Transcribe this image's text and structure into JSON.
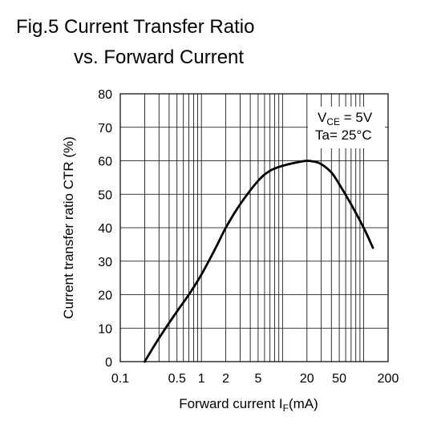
{
  "title": {
    "line1": "Fig.5 Current Transfer Ratio",
    "line2": "vs. Forward Current"
  },
  "chart_data": {
    "type": "line",
    "title": "Fig.5 Current Transfer Ratio vs. Forward Current",
    "xlabel_main": "Forward current I",
    "xlabel_sub": "F",
    "xlabel_unit": "(mA)",
    "ylabel": "Current transfer ratio CTR (%)",
    "x_scale": "log",
    "xlim": [
      0.1,
      200
    ],
    "ylim": [
      0,
      80
    ],
    "x_ticks": [
      0.1,
      0.5,
      1,
      2,
      5,
      20,
      50,
      200
    ],
    "x_tick_labels": [
      "0.1",
      "0.5",
      "1",
      "2",
      "5",
      "20",
      "50",
      "200"
    ],
    "y_ticks": [
      0,
      10,
      20,
      30,
      40,
      50,
      60,
      70,
      80
    ],
    "y_tick_labels": [
      "0",
      "10",
      "20",
      "30",
      "40",
      "50",
      "60",
      "70",
      "80"
    ],
    "grid": true,
    "conditions": {
      "vce_main": "V",
      "vce_sub": "CE",
      "vce_rest": " = 5V",
      "ta": "Ta= 25°C"
    },
    "series": [
      {
        "x": [
          0.2,
          0.3,
          0.5,
          0.7,
          1.0,
          1.5,
          2.0,
          3.0,
          5.0,
          7.0,
          10,
          15,
          20,
          25,
          30,
          40,
          50,
          70,
          100,
          130
        ],
        "y": [
          0,
          7,
          15,
          20,
          26,
          34,
          40,
          47,
          54,
          57,
          58.5,
          59.5,
          60,
          59.7,
          59,
          56.5,
          53,
          47,
          40,
          34
        ]
      }
    ]
  }
}
